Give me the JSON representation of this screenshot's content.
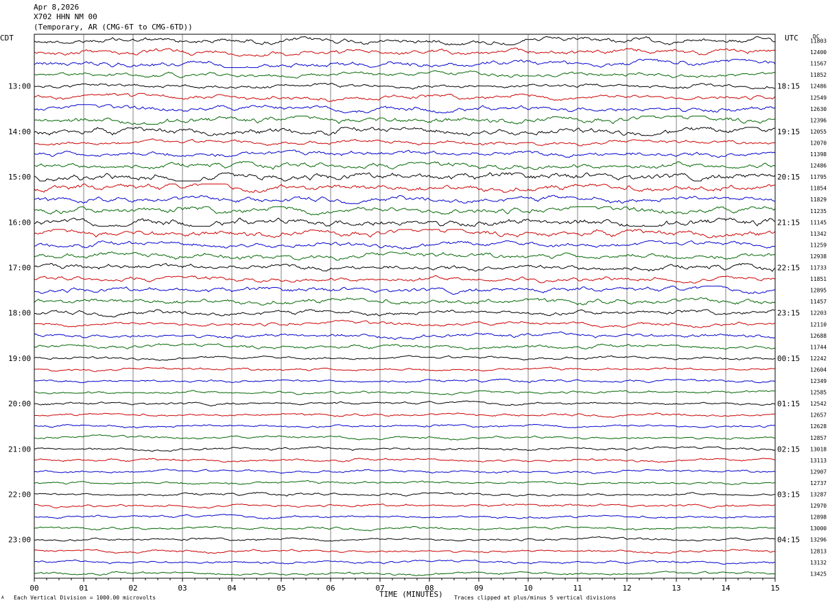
{
  "header": {
    "date": "Apr 8,2026",
    "station": "X702 HHN NM 00",
    "network": "(Temporary, AR (CMG-6T to CMG-6TD))"
  },
  "labels": {
    "left_tz": "CDT",
    "right_tz": "UTC",
    "dc": "DC",
    "xlabel": "TIME (MINUTES)",
    "scale_note": "Each Vertical Division = 1000.00 microvolts",
    "clip_note": "Traces clipped at plus/minus 5 vertical divisions",
    "corner_mark": "A"
  },
  "colors": {
    "trace_cycle": [
      "#000000",
      "#cc0000",
      "#0000cc",
      "#006600"
    ],
    "grid": "#808080",
    "frame": "#000000"
  },
  "chart_data": {
    "type": "line",
    "title": "X702 HHN NM 00",
    "xlabel": "TIME (MINUTES)",
    "xlim": [
      0,
      15
    ],
    "x_ticks": [
      "00",
      "01",
      "02",
      "03",
      "04",
      "05",
      "06",
      "07",
      "08",
      "09",
      "10",
      "11",
      "12",
      "13",
      "14",
      "15"
    ],
    "trace_count": 48,
    "traces_per_hour": 4,
    "left_hour_labels": [
      "13:00",
      "14:00",
      "15:00",
      "16:00",
      "17:00",
      "18:00",
      "19:00",
      "20:00",
      "21:00",
      "22:00",
      "23:00"
    ],
    "right_hour_labels": [
      "18:15",
      "19:15",
      "20:15",
      "21:15",
      "22:15",
      "23:15",
      "00:15",
      "01:15",
      "02:15",
      "03:15",
      "04:15"
    ],
    "dc_offsets": [
      11803,
      12400,
      11567,
      11852,
      12486,
      12549,
      12630,
      12396,
      12055,
      12070,
      11398,
      12486,
      11795,
      11854,
      11829,
      11235,
      11145,
      11342,
      11259,
      12938,
      11733,
      11851,
      12895,
      11457,
      12203,
      12110,
      12688,
      11744,
      12242,
      12604,
      12349,
      12585,
      12542,
      12657,
      12628,
      12857,
      13018,
      13113,
      12907,
      12737,
      13287,
      12970,
      12898,
      13000,
      13296,
      12813,
      13132,
      13425
    ],
    "activity": [
      2.2,
      2.0,
      2.2,
      1.6,
      1.5,
      1.8,
      2.1,
      2.4,
      2.6,
      1.6,
      2.0,
      2.2,
      2.8,
      2.7,
      2.2,
      2.6,
      3.0,
      2.5,
      2.0,
      2.2,
      2.2,
      1.8,
      2.0,
      2.2,
      1.8,
      1.5,
      1.6,
      1.4,
      1.1,
      1.0,
      1.0,
      1.0,
      1.0,
      1.0,
      1.0,
      1.0,
      1.0,
      1.0,
      1.0,
      1.0,
      1.0,
      1.0,
      1.0,
      1.0,
      1.0,
      1.0,
      1.0,
      1.0
    ],
    "units": "1000.00 microvolts per vertical division",
    "clip_divisions": 5
  }
}
